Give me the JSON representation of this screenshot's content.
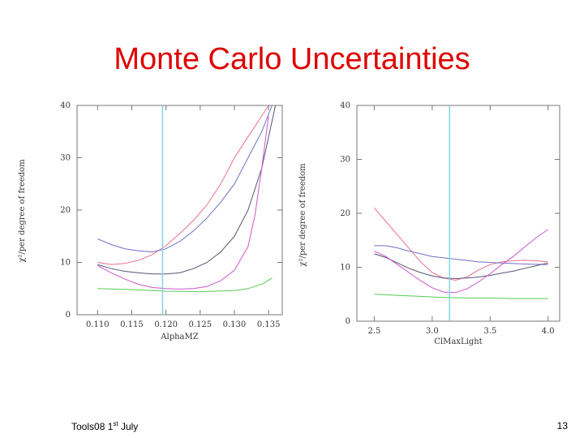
{
  "slide": {
    "title": "Monte Carlo Uncertainties",
    "footer_left_prefix": "Tools08 1",
    "footer_left_sup": "st",
    "footer_left_suffix": " July",
    "page_number": "13"
  },
  "chart_data": [
    {
      "type": "line",
      "xlabel": "AlphaMZ",
      "ylabel": "χ²/per degree of freedom",
      "xlim": [
        0.107,
        0.137
      ],
      "ylim": [
        0,
        40
      ],
      "xticks": [
        "0.110",
        "0.115",
        "0.120",
        "0.125",
        "0.130",
        "0.135"
      ],
      "xtick_values": [
        0.11,
        0.115,
        0.12,
        0.125,
        0.13,
        0.135
      ],
      "yticks": [
        0,
        10,
        20,
        30,
        40
      ],
      "reference_line_x": 0.1195,
      "series": [
        {
          "color": "#e8708c",
          "x": [
            0.11,
            0.112,
            0.114,
            0.116,
            0.118,
            0.12,
            0.122,
            0.124,
            0.126,
            0.128,
            0.13,
            0.132,
            0.134,
            0.135
          ],
          "y": [
            10,
            9.6,
            9.8,
            10.4,
            11.5,
            13.2,
            15.5,
            18,
            21,
            25,
            30,
            34,
            38,
            40
          ]
        },
        {
          "color": "#7070c8",
          "x": [
            0.11,
            0.112,
            0.114,
            0.116,
            0.118,
            0.12,
            0.122,
            0.124,
            0.126,
            0.128,
            0.13,
            0.132,
            0.134,
            0.1355
          ],
          "y": [
            14.5,
            13.4,
            12.6,
            12.2,
            12.0,
            12.6,
            14,
            16,
            18.5,
            21.5,
            25,
            30,
            35,
            40
          ]
        },
        {
          "color": "#555577",
          "x": [
            0.11,
            0.112,
            0.114,
            0.116,
            0.118,
            0.12,
            0.122,
            0.124,
            0.126,
            0.128,
            0.13,
            0.132,
            0.134,
            0.136
          ],
          "y": [
            9.6,
            8.8,
            8.3,
            8.0,
            7.8,
            7.8,
            8.0,
            8.8,
            10,
            12,
            15,
            20,
            28,
            40
          ]
        },
        {
          "color": "#cc55cc",
          "x": [
            0.11,
            0.112,
            0.114,
            0.116,
            0.118,
            0.12,
            0.122,
            0.124,
            0.126,
            0.128,
            0.13,
            0.132,
            0.133,
            0.134,
            0.135
          ],
          "y": [
            9.4,
            8.0,
            6.8,
            5.8,
            5.2,
            5.0,
            4.9,
            5.0,
            5.4,
            6.5,
            8.5,
            13,
            19,
            28,
            38
          ]
        },
        {
          "color": "#55cc55",
          "x": [
            0.11,
            0.115,
            0.12,
            0.125,
            0.13,
            0.132,
            0.134,
            0.1355
          ],
          "y": [
            5.0,
            4.8,
            4.5,
            4.4,
            4.6,
            5.0,
            5.8,
            7.0
          ]
        }
      ]
    },
    {
      "type": "line",
      "xlabel": "ClMaxLight",
      "ylabel": "χ²/per degree of freedom",
      "xlim": [
        2.35,
        4.1
      ],
      "ylim": [
        0,
        40
      ],
      "xticks": [
        "2.5",
        "3.0",
        "3.5",
        "4.0"
      ],
      "xtick_values": [
        2.5,
        3.0,
        3.5,
        4.0
      ],
      "yticks": [
        0,
        10,
        20,
        30,
        40
      ],
      "reference_line_x": 3.15,
      "series": [
        {
          "color": "#e8708c",
          "x": [
            2.5,
            2.6,
            2.7,
            2.8,
            2.9,
            3.0,
            3.1,
            3.2,
            3.3,
            3.4,
            3.5,
            3.6,
            3.7,
            3.8,
            3.9,
            4.0
          ],
          "y": [
            21,
            18.5,
            16,
            13.5,
            11,
            9,
            8,
            7.6,
            8.2,
            9.5,
            10.5,
            11,
            11.2,
            11.3,
            11.2,
            11
          ]
        },
        {
          "color": "#7070c8",
          "x": [
            2.5,
            2.6,
            2.7,
            2.8,
            2.9,
            3.0,
            3.2,
            3.4,
            3.6,
            3.8,
            4.0
          ],
          "y": [
            14,
            14,
            13.6,
            13,
            12.5,
            12,
            11.5,
            11,
            10.8,
            10.6,
            10.5
          ]
        },
        {
          "color": "#555577",
          "x": [
            2.5,
            2.6,
            2.7,
            2.8,
            2.9,
            3.0,
            3.1,
            3.2,
            3.3,
            3.4,
            3.5,
            3.6,
            3.7,
            3.8,
            3.9,
            4.0
          ],
          "y": [
            12.5,
            11.8,
            10.8,
            9.8,
            9.0,
            8.4,
            8.0,
            7.9,
            8.0,
            8.2,
            8.5,
            8.9,
            9.3,
            9.8,
            10.3,
            10.8
          ]
        },
        {
          "color": "#cc55cc",
          "x": [
            2.5,
            2.6,
            2.7,
            2.8,
            2.9,
            3.0,
            3.1,
            3.2,
            3.3,
            3.4,
            3.5,
            3.6,
            3.7,
            3.8,
            3.9,
            4.0
          ],
          "y": [
            13,
            12,
            10.5,
            9,
            7.5,
            6.2,
            5.4,
            5.3,
            6.0,
            7.3,
            8.8,
            10.5,
            12,
            13.8,
            15.5,
            17
          ]
        },
        {
          "color": "#55cc55",
          "x": [
            2.5,
            2.7,
            2.9,
            3.1,
            3.3,
            3.5,
            3.7,
            3.9,
            4.0
          ],
          "y": [
            5.0,
            4.8,
            4.6,
            4.4,
            4.3,
            4.3,
            4.2,
            4.2,
            4.2
          ]
        }
      ]
    }
  ]
}
